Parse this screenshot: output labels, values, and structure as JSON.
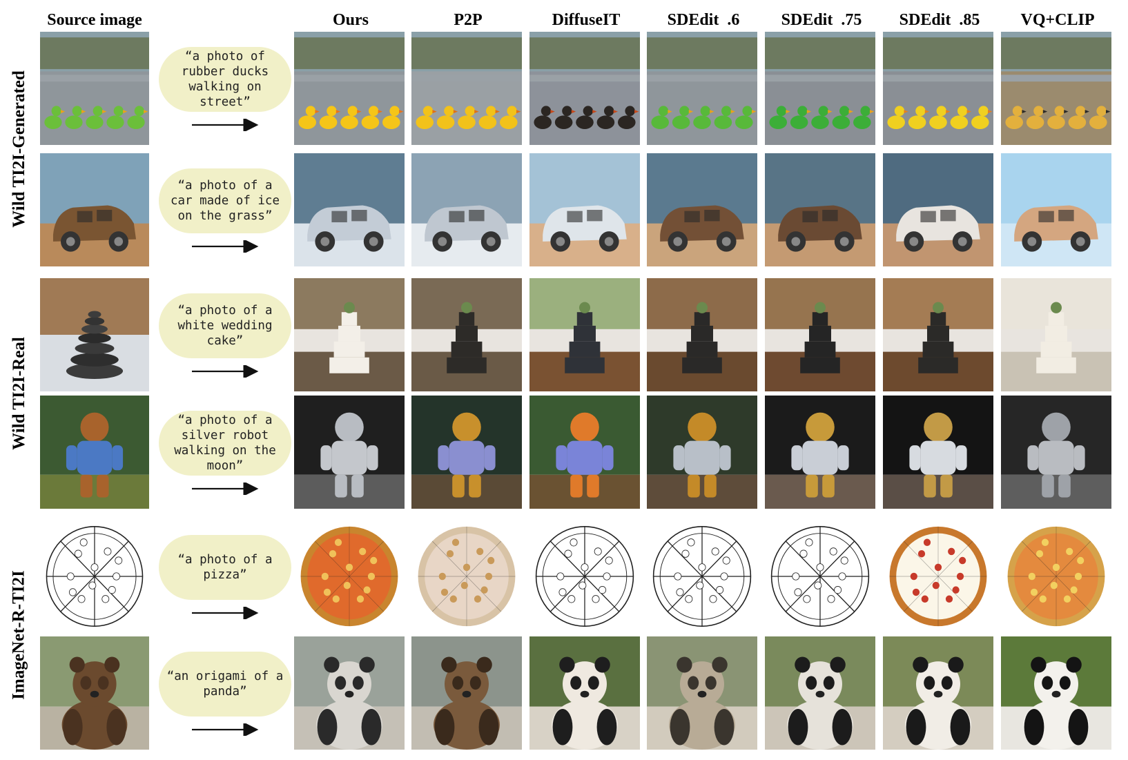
{
  "headers": {
    "source": "Source image",
    "methods": [
      "Ours",
      "P2P",
      "DiffuseIT",
      "SDEdit  .6",
      "SDEdit  .75",
      "SDEdit  .85",
      "VQ+CLIP"
    ]
  },
  "groups": [
    "Wild TI2I-Generated",
    "Wild TI2I-Real",
    "ImageNet-R-TI2I"
  ],
  "prompts": [
    "“a photo of rubber ducks walking on street”",
    "“a photo of a car made of ice on the grass”",
    "“a photo of a white wedding cake”",
    "“a photo of a silver robot walking on the moon”",
    "“a photo of a pizza”",
    "“an origami of a panda”"
  ],
  "rows": [
    {
      "theme": "ducks",
      "source_image": "street with toy ducks",
      "outputs": [
        "yellow rubber ducks",
        "yellow rubber ducks",
        "dark ducks on pavement",
        "green ducks",
        "green ducks",
        "yellow ducks",
        "surreal ducks"
      ]
    },
    {
      "theme": "car",
      "source_image": "sand car",
      "outputs": [
        "icy car",
        "icy car",
        "icy car",
        "sand car",
        "sand car",
        "white car",
        "ice block car"
      ]
    },
    {
      "theme": "cake",
      "source_image": "stacked stones",
      "outputs": [
        "white wedding cake",
        "dark cake",
        "dark stacked cake",
        "dark cake",
        "dark cake",
        "dark cake",
        "white cake"
      ]
    },
    {
      "theme": "robot",
      "source_image": "teddy bear in sweater",
      "outputs": [
        "silver robot",
        "golden bear robot",
        "colorful robot",
        "silver robot",
        "astronaut",
        "astronaut",
        "silver robot"
      ]
    },
    {
      "theme": "pizza",
      "source_image": "pizza sketch",
      "outputs": [
        "pizza photo",
        "faded pizza",
        "pizza sketch",
        "pizza sketch",
        "pizza sketch",
        "colored pizza",
        "pizza photo"
      ]
    },
    {
      "theme": "panda",
      "source_image": "bronze bear statue",
      "outputs": [
        "origami panda",
        "bronze bear",
        "panda",
        "origami panda",
        "origami panda",
        "origami panda",
        "origami panda"
      ]
    }
  ],
  "colors": {
    "prompt_bubble": "#f1f0c8"
  }
}
